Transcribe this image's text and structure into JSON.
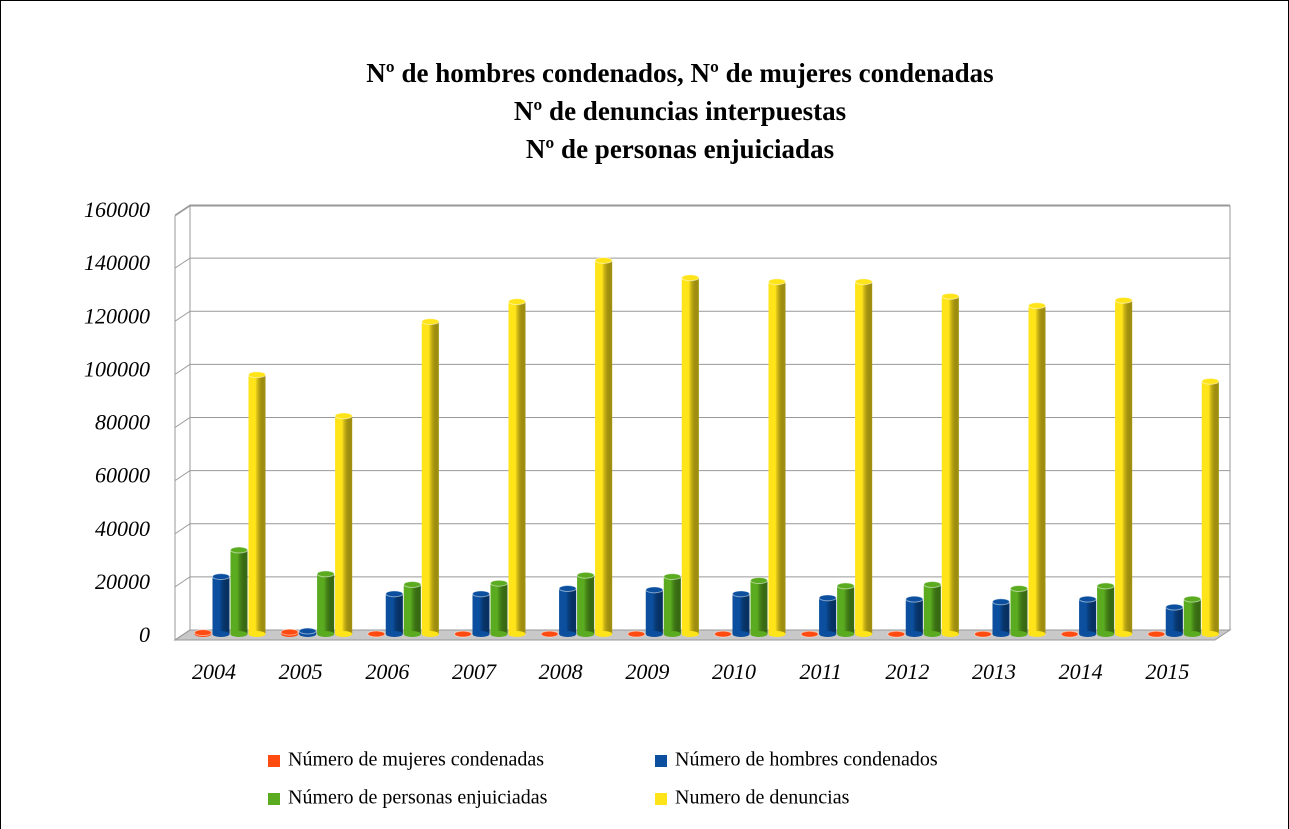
{
  "chart_data": {
    "type": "bar",
    "title": [
      "Nº de hombres condenados,  Nº de mujeres condenadas",
      "Nº de denuncias interpuestas",
      "Nº de personas enjuiciadas"
    ],
    "categories": [
      "2004",
      "2005",
      "2006",
      "2007",
      "2008",
      "2009",
      "2010",
      "2011",
      "2012",
      "2013",
      "2014",
      "2015"
    ],
    "series": [
      {
        "name": "Número de mujeres condenadas",
        "color": "#ff4a10",
        "values": [
          900,
          1100,
          400,
          350,
          350,
          350,
          350,
          300,
          300,
          300,
          300,
          300
        ]
      },
      {
        "name": "Número de hombres condenados",
        "color": "#0b4f9e",
        "values": [
          22000,
          1500,
          15500,
          15500,
          17500,
          17000,
          15500,
          14000,
          13500,
          12500,
          13500,
          10500
        ]
      },
      {
        "name": "Número de personas enjuiciadas",
        "color": "#5aab1f",
        "values": [
          32000,
          23000,
          19000,
          19500,
          22500,
          22000,
          20500,
          18500,
          19000,
          17500,
          18500,
          13500
        ]
      },
      {
        "name": "Numero de denuncias",
        "color": "#ffe41a",
        "values": [
          98000,
          82500,
          118000,
          125500,
          141000,
          134500,
          133000,
          133000,
          127500,
          124000,
          126000,
          95500
        ]
      }
    ],
    "ylim": [
      0,
      160000
    ],
    "yticks": [
      0,
      20000,
      40000,
      60000,
      80000,
      100000,
      120000,
      140000,
      160000
    ],
    "grid": true,
    "legend": "bottom"
  }
}
